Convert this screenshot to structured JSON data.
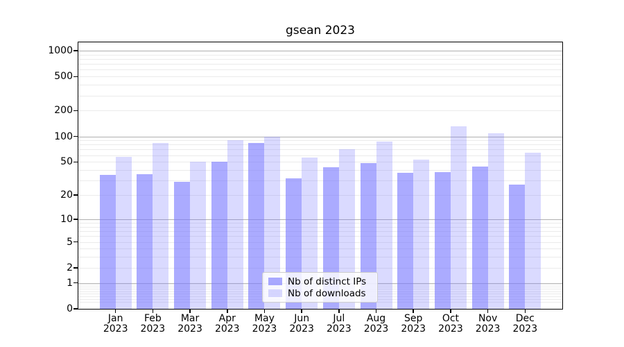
{
  "chart_data": {
    "type": "bar",
    "title": "gsean 2023",
    "categories": [
      "Jan",
      "Feb",
      "Mar",
      "Apr",
      "May",
      "Jun",
      "Jul",
      "Aug",
      "Sep",
      "Oct",
      "Nov",
      "Dec"
    ],
    "category_year": "2023",
    "series": [
      {
        "name": "Nb of distinct IPs",
        "color": "rgba(119,119,255,0.62)",
        "values": [
          35,
          36,
          29,
          50,
          84,
          32,
          43,
          48,
          37,
          38,
          44,
          27
        ]
      },
      {
        "name": "Nb of downloads",
        "color": "rgba(119,119,255,0.27)",
        "values": [
          57,
          83,
          50,
          90,
          100,
          56,
          70,
          87,
          53,
          131,
          109,
          64
        ]
      }
    ],
    "yscale": "log1p",
    "ylim": [
      0,
      1250
    ],
    "ytick_labels": [
      "1000",
      "500",
      "200",
      "100",
      "50",
      "20",
      "10",
      "5",
      "2",
      "1",
      "0"
    ],
    "major_gridlines": [
      1,
      10,
      100,
      1000
    ],
    "grid": true,
    "legend_position": "lower-center",
    "colors": {
      "major_grid": "#b0b0b0",
      "minor_grid": "#ebebeb",
      "spine": "#000000"
    }
  }
}
